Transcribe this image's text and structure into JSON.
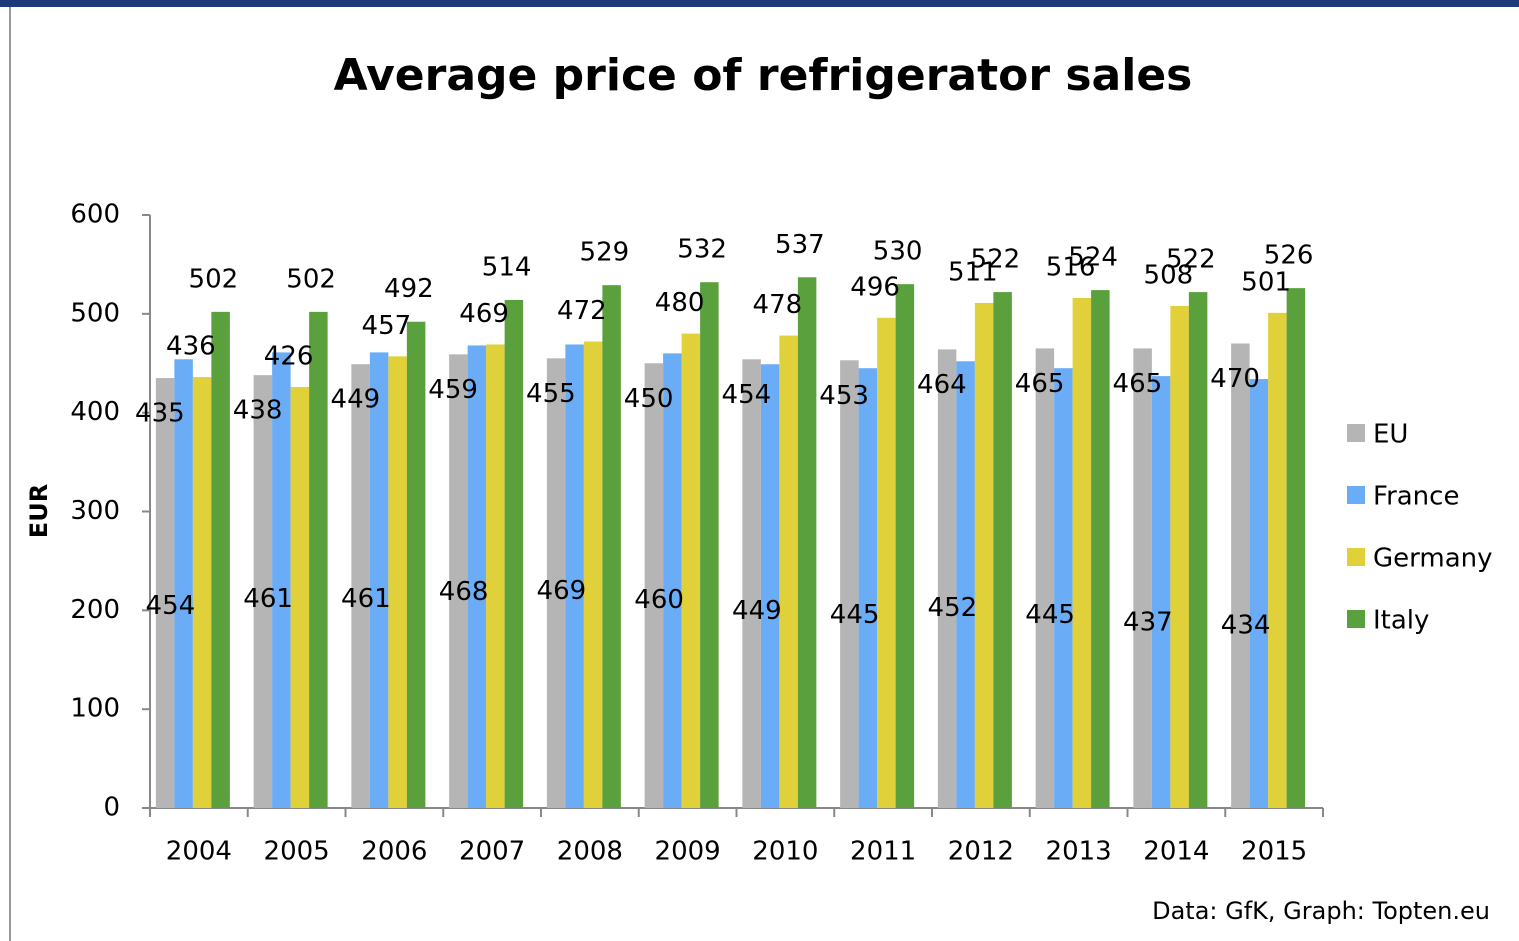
{
  "chart_data": {
    "type": "bar",
    "title": "Average price of refrigerator sales",
    "ylabel": "EUR",
    "source": "Data: GfK, Graph: Topten.eu",
    "categories": [
      "2004",
      "2005",
      "2006",
      "2007",
      "2008",
      "2009",
      "2010",
      "2011",
      "2012",
      "2013",
      "2014",
      "2015"
    ],
    "series": [
      {
        "name": "EU",
        "color": "#b5b5b5",
        "values": [
          435,
          438,
          449,
          459,
          455,
          450,
          454,
          453,
          464,
          465,
          465,
          470
        ]
      },
      {
        "name": "France",
        "color": "#6aacf5",
        "values": [
          454,
          461,
          461,
          468,
          469,
          460,
          449,
          445,
          452,
          445,
          437,
          434
        ]
      },
      {
        "name": "Germany",
        "color": "#e0d03a",
        "values": [
          436,
          426,
          457,
          469,
          472,
          480,
          478,
          496,
          511,
          516,
          508,
          501
        ]
      },
      {
        "name": "Italy",
        "color": "#5aa03c",
        "values": [
          502,
          502,
          492,
          514,
          529,
          532,
          537,
          530,
          522,
          524,
          522,
          526
        ]
      }
    ],
    "ylim": [
      0,
      600
    ],
    "yticks": [
      0,
      100,
      200,
      300,
      400,
      500,
      600
    ],
    "grid": false,
    "legend": "right"
  }
}
